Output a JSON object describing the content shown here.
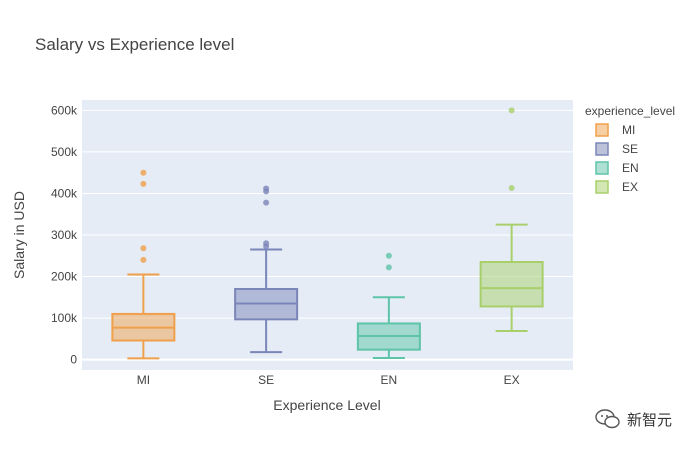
{
  "chart_data": {
    "type": "box",
    "title": "Salary vs Experience level",
    "xlabel": "Experience Level",
    "ylabel": "Salary in USD",
    "ylim": [
      -25000,
      625000
    ],
    "yticks": [
      0,
      100000,
      200000,
      300000,
      400000,
      500000,
      600000
    ],
    "ytick_labels": [
      "0",
      "100k",
      "200k",
      "300k",
      "400k",
      "500k",
      "600k"
    ],
    "grid": true,
    "legend_title": "experience_level",
    "legend_position": "right",
    "categories": [
      "MI",
      "SE",
      "EN",
      "EX"
    ],
    "series": [
      {
        "name": "MI",
        "color": "#f0a04b",
        "min": 3000,
        "q1": 46000,
        "median": 77000,
        "q3": 110000,
        "max": 205000,
        "outliers": [
          240000,
          268000,
          423000,
          450000
        ]
      },
      {
        "name": "SE",
        "color": "#7b86b8",
        "min": 18000,
        "q1": 97000,
        "median": 135000,
        "q3": 170000,
        "max": 265000,
        "outliers": [
          273000,
          280000,
          378000,
          405000,
          412000
        ]
      },
      {
        "name": "EN",
        "color": "#5ec4a8",
        "min": 4000,
        "q1": 24000,
        "median": 57000,
        "q3": 87000,
        "max": 150000,
        "outliers": [
          222000,
          250000
        ]
      },
      {
        "name": "EX",
        "color": "#a8cf6a",
        "min": 69000,
        "q1": 128000,
        "median": 172000,
        "q3": 235000,
        "max": 325000,
        "outliers": [
          413000,
          600000
        ]
      }
    ]
  },
  "watermark": {
    "text": "新智元"
  }
}
